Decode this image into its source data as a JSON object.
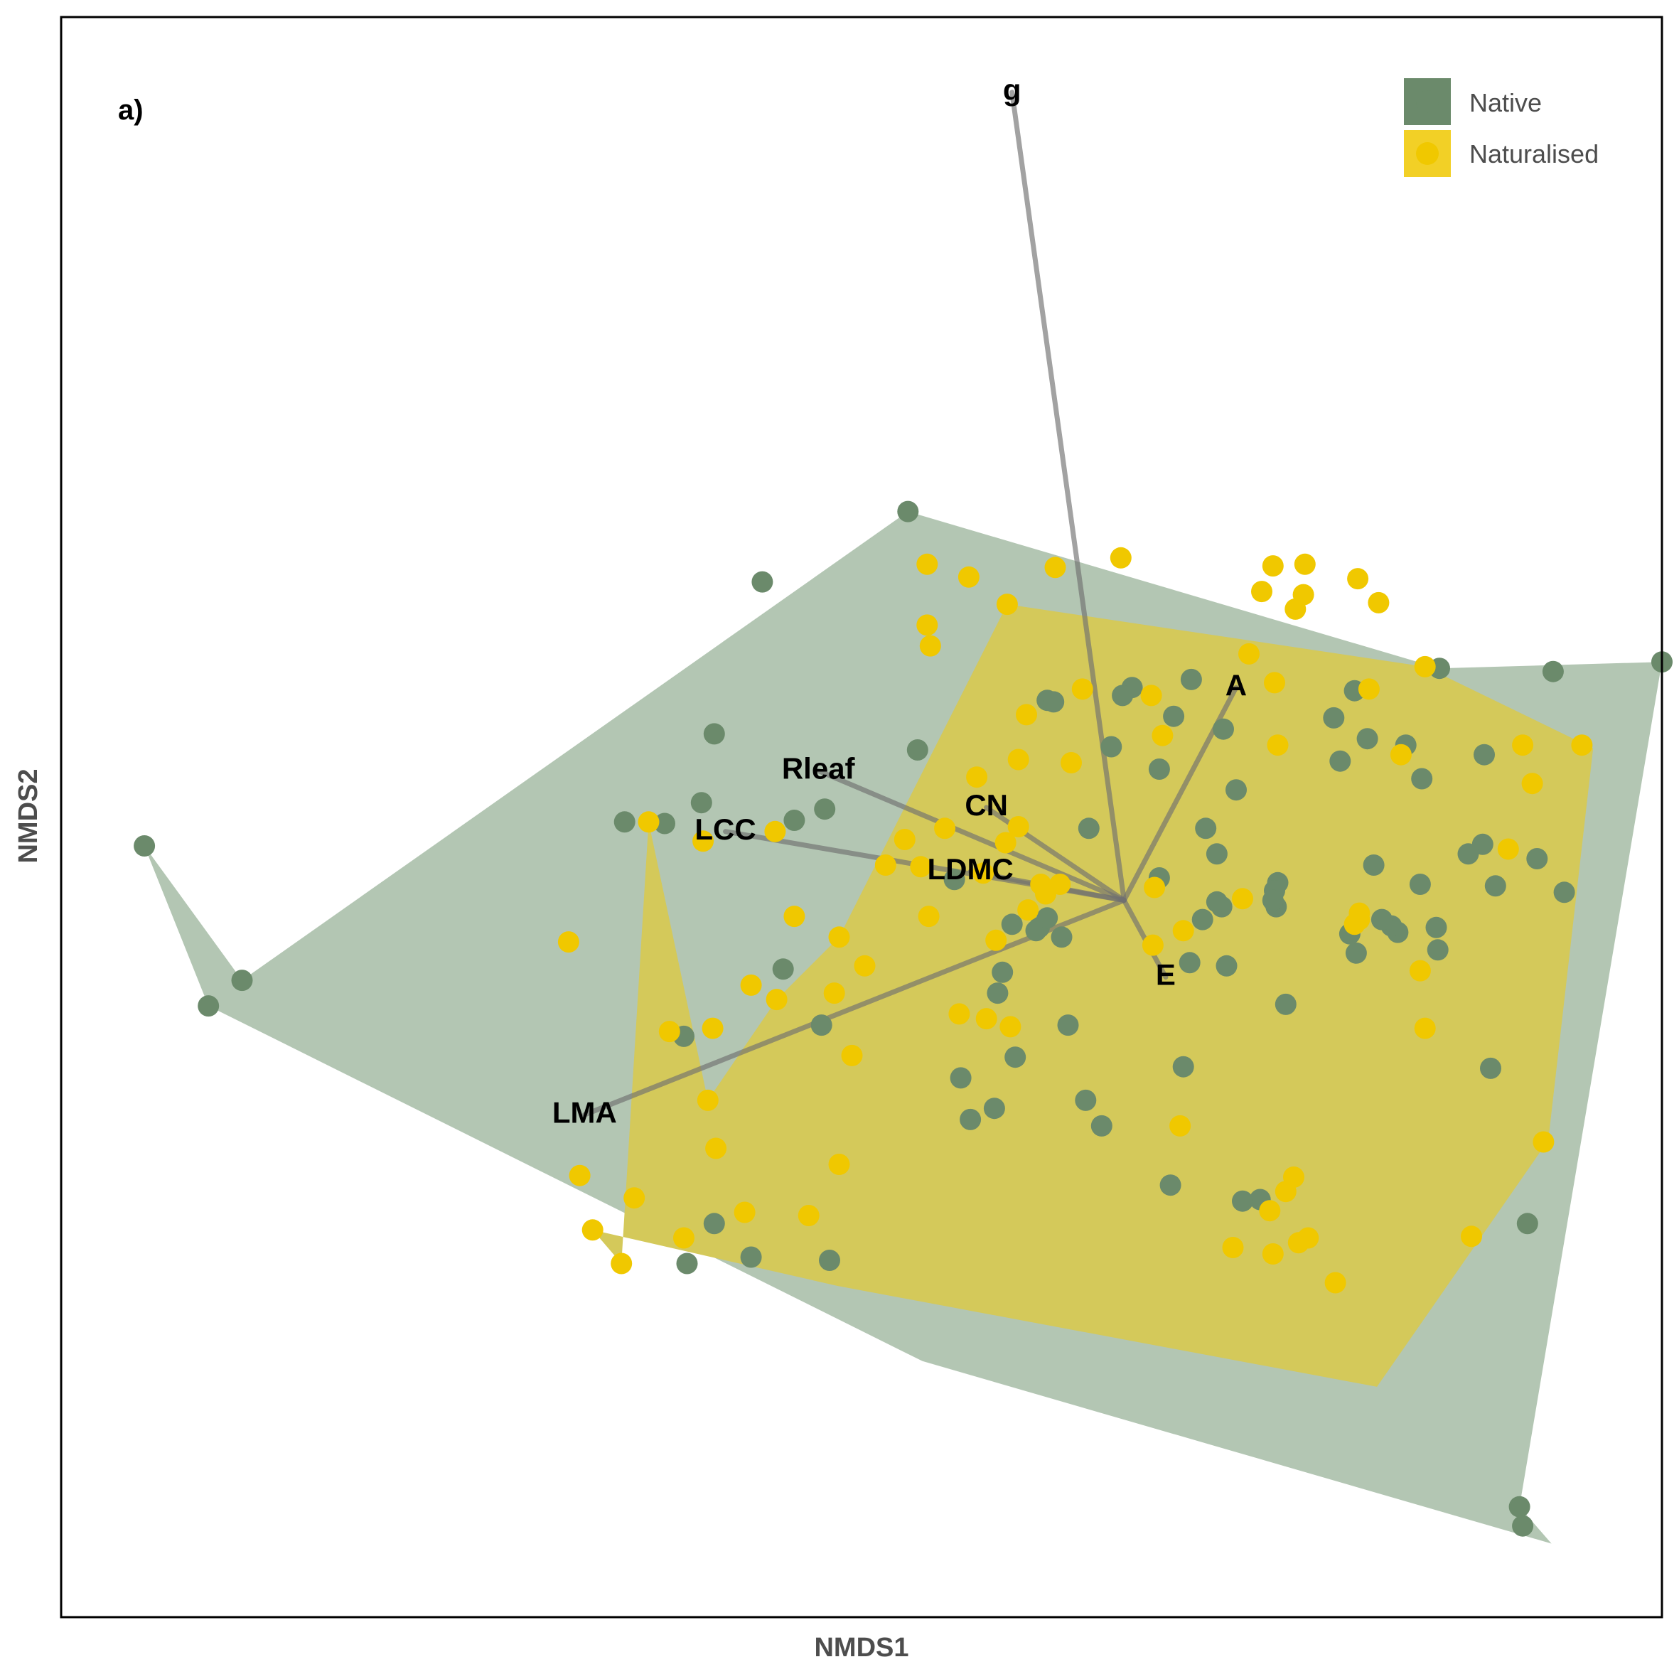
{
  "chart_data": {
    "type": "scatter",
    "panel_label": "a)",
    "xlabel": "NMDS1",
    "ylabel": "NMDS2",
    "xlim": [
      0,
      1000
    ],
    "ylim": [
      0,
      1000
    ],
    "grid": false,
    "legend_position": "top-right",
    "colors": {
      "native": "#6b8a6b",
      "native_hull": "#b3c6b3",
      "naturalised": "#f0c800",
      "naturalised_hull": "#d4c95a",
      "vector": "#707070"
    },
    "legend": [
      {
        "key": "native",
        "label": "Native"
      },
      {
        "key": "naturalised",
        "label": "Naturalised"
      }
    ],
    "series": [
      {
        "name": "Native",
        "key": "native",
        "points": [
          [
            52,
            482
          ],
          [
            113,
            398
          ],
          [
            92,
            382
          ],
          [
            529,
            691
          ],
          [
            438,
            647
          ],
          [
            861,
            593
          ],
          [
            932,
            591
          ],
          [
            808,
            579
          ],
          [
            1000,
            597
          ],
          [
            911,
            69
          ],
          [
            616,
            573
          ],
          [
            620,
            572
          ],
          [
            669,
            581
          ],
          [
            663,
            576
          ],
          [
            706,
            586
          ],
          [
            726,
            555
          ],
          [
            734,
            517
          ],
          [
            686,
            530
          ],
          [
            695,
            563
          ],
          [
            656,
            544
          ],
          [
            408,
            552
          ],
          [
            535,
            542
          ],
          [
            458,
            498
          ],
          [
            477,
            505
          ],
          [
            594,
            433
          ],
          [
            400,
            509
          ],
          [
            377,
            496
          ],
          [
            352,
            497
          ],
          [
            451,
            405
          ],
          [
            389,
            363
          ],
          [
            475,
            370
          ],
          [
            585,
            390
          ],
          [
            642,
            493
          ],
          [
            562,
            337
          ],
          [
            558,
            461
          ],
          [
            588,
            403
          ],
          [
            568,
            311
          ],
          [
            596,
            350
          ],
          [
            609,
            429
          ],
          [
            611,
            431
          ],
          [
            625,
            425
          ],
          [
            616,
            437
          ],
          [
            629,
            370
          ],
          [
            583,
            318
          ],
          [
            725,
            444
          ],
          [
            640,
            323
          ],
          [
            650,
            307
          ],
          [
            686,
            462
          ],
          [
            701,
            344
          ],
          [
            705,
            409
          ],
          [
            715,
            493
          ],
          [
            722,
            477
          ],
          [
            760,
            459
          ],
          [
            758,
            454
          ],
          [
            713,
            436
          ],
          [
            722,
            447
          ],
          [
            728,
            407
          ],
          [
            759,
            444
          ],
          [
            765,
            383
          ],
          [
            757,
            448
          ],
          [
            799,
            535
          ],
          [
            795,
            562
          ],
          [
            816,
            549
          ],
          [
            840,
            545
          ],
          [
            850,
            524
          ],
          [
            820,
            470
          ],
          [
            835,
            428
          ],
          [
            849,
            458
          ],
          [
            889,
            539
          ],
          [
            888,
            483
          ],
          [
            922,
            474
          ],
          [
            896,
            457
          ],
          [
            879,
            477
          ],
          [
            939,
            453
          ],
          [
            859,
            431
          ],
          [
            831,
            432
          ],
          [
            860,
            417
          ],
          [
            809,
            415
          ],
          [
            805,
            427
          ],
          [
            825,
            436
          ],
          [
            893,
            343
          ],
          [
            916,
            246
          ],
          [
            913,
            57
          ],
          [
            693,
            270
          ],
          [
            749,
            261
          ],
          [
            738,
            260
          ],
          [
            391,
            221
          ],
          [
            408,
            246
          ],
          [
            431,
            225
          ],
          [
            480,
            223
          ]
        ]
      },
      {
        "name": "Naturalised",
        "key": "naturalised",
        "points": [
          [
            612,
            458
          ],
          [
            615,
            452
          ],
          [
            604,
            442
          ],
          [
            584,
            423
          ],
          [
            598,
            494
          ],
          [
            624,
            458
          ],
          [
            631,
            534
          ],
          [
            590,
            484
          ],
          [
            576,
            465
          ],
          [
            572,
            525
          ],
          [
            552,
            493
          ],
          [
            527,
            486
          ],
          [
            537,
            469
          ],
          [
            515,
            470
          ],
          [
            542,
            438
          ],
          [
            502,
            407
          ],
          [
            486,
            425
          ],
          [
            494,
            351
          ],
          [
            447,
            386
          ],
          [
            431,
            395
          ],
          [
            407,
            368
          ],
          [
            367,
            497
          ],
          [
            401,
            485
          ],
          [
            446,
            491
          ],
          [
            458,
            438
          ],
          [
            483,
            390
          ],
          [
            404,
            323
          ],
          [
            380,
            366
          ],
          [
            317,
            422
          ],
          [
            324,
            276
          ],
          [
            427,
            253
          ],
          [
            486,
            283
          ],
          [
            409,
            293
          ],
          [
            389,
            237
          ],
          [
            332,
            242
          ],
          [
            358,
            262
          ],
          [
            350,
            221
          ],
          [
            467,
            251
          ],
          [
            578,
            374
          ],
          [
            561,
            377
          ],
          [
            593,
            369
          ],
          [
            591,
            633
          ],
          [
            598,
            536
          ],
          [
            603,
            564
          ],
          [
            543,
            607
          ],
          [
            541,
            658
          ],
          [
            541,
            620
          ],
          [
            567,
            650
          ],
          [
            621,
            656
          ],
          [
            638,
            580
          ],
          [
            662,
            662
          ],
          [
            688,
            551
          ],
          [
            683,
            456
          ],
          [
            682,
            420
          ],
          [
            681,
            576
          ],
          [
            760,
            545
          ],
          [
            758,
            584
          ],
          [
            837,
            539
          ],
          [
            817,
            580
          ],
          [
            852,
            594
          ],
          [
            823,
            634
          ],
          [
            777,
            658
          ],
          [
            742,
            602
          ],
          [
            810,
            649
          ],
          [
            757,
            657
          ],
          [
            776,
            639
          ],
          [
            771,
            630
          ],
          [
            750,
            641
          ],
          [
            913,
            545
          ],
          [
            849,
            404
          ],
          [
            852,
            368
          ],
          [
            796,
            209
          ],
          [
            732,
            231
          ],
          [
            699,
            307
          ],
          [
            881,
            238
          ],
          [
            926,
            297
          ],
          [
            950,
            545
          ],
          [
            904,
            480
          ],
          [
            919,
            521
          ],
          [
            811,
            440
          ],
          [
            811,
            436
          ],
          [
            808,
            433
          ],
          [
            701,
            429
          ],
          [
            738,
            449
          ],
          [
            770,
            275
          ],
          [
            765,
            266
          ],
          [
            755,
            254
          ],
          [
            773,
            234
          ],
          [
            757,
            227
          ],
          [
            779,
            237
          ]
        ]
      }
    ],
    "hulls": [
      {
        "key": "native",
        "points": [
          [
            52,
            482
          ],
          [
            113,
            398
          ],
          [
            529,
            691
          ],
          [
            861,
            593
          ],
          [
            1000,
            597
          ],
          [
            911,
            69
          ],
          [
            931,
            46
          ],
          [
            538,
            160
          ],
          [
            92,
            382
          ]
        ]
      },
      {
        "key": "naturalised",
        "points": [
          [
            367,
            497
          ],
          [
            404,
            323
          ],
          [
            447,
            386
          ],
          [
            486,
            425
          ],
          [
            591,
            633
          ],
          [
            852,
            594
          ],
          [
            957,
            543
          ],
          [
            929,
            298
          ],
          [
            822,
            144
          ],
          [
            485,
            207
          ],
          [
            332,
            242
          ],
          [
            350,
            221
          ]
        ]
      }
    ],
    "vectors": [
      {
        "label": "g",
        "x": 594,
        "y": 953
      },
      {
        "label": "A",
        "x": 734,
        "y": 581
      },
      {
        "label": "Rleaf",
        "x": 473,
        "y": 529
      },
      {
        "label": "CN",
        "x": 578,
        "y": 506
      },
      {
        "label": "LCC",
        "x": 415,
        "y": 491
      },
      {
        "label": "LDMC",
        "x": 568,
        "y": 466
      },
      {
        "label": "E",
        "x": 690,
        "y": 400
      },
      {
        "label": "LMA",
        "x": 327,
        "y": 314
      }
    ],
    "vector_origin": {
      "x": 664,
      "y": 448
    }
  }
}
